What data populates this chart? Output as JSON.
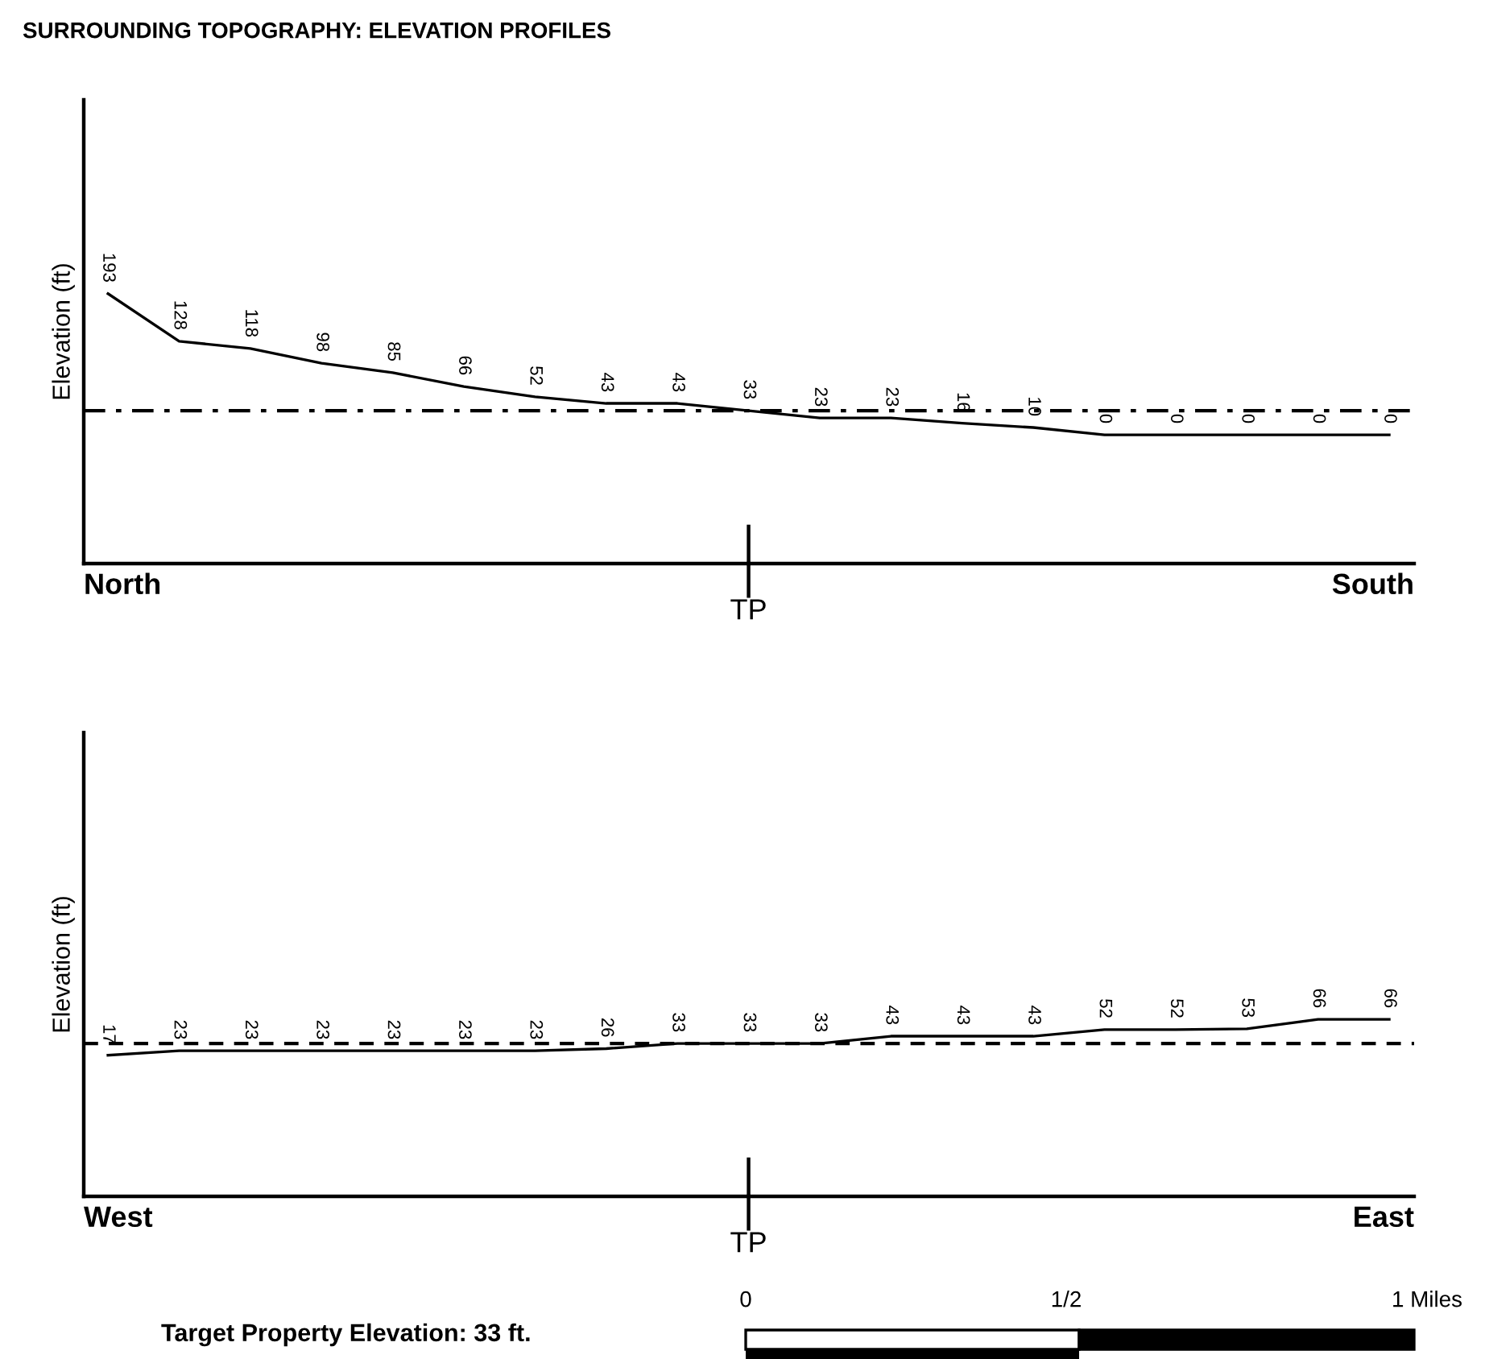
{
  "chart_data": [
    {
      "type": "line",
      "title": "SURROUNDING TOPOGRAPHY: ELEVATION PROFILES",
      "ylabel": "Elevation (ft)",
      "categories": [
        null,
        null,
        null,
        null,
        null,
        null,
        null,
        null,
        null,
        null,
        null,
        null,
        null,
        null,
        null,
        null,
        null,
        null,
        null
      ],
      "series": [
        {
          "color": "#000000",
          "values": [
            193,
            128,
            118,
            98,
            85,
            66,
            52,
            43,
            43,
            33,
            23,
            23,
            16,
            10,
            0,
            0,
            0,
            0,
            0
          ]
        }
      ],
      "ylim": [
        -176,
        458
      ],
      "data_labels": true,
      "grid": false,
      "legend": false,
      "marker": "none",
      "line_style": "solid",
      "ref_lines": [
        {
          "axis": "y",
          "value": 33,
          "line_style": "dashdot",
          "color": "#000000"
        }
      ],
      "annotations": [
        "North",
        "South",
        "TP"
      ]
    },
    {
      "type": "line",
      "ylabel": "Elevation (ft)",
      "categories": [
        null,
        null,
        null,
        null,
        null,
        null,
        null,
        null,
        null,
        null,
        null,
        null,
        null,
        null,
        null,
        null,
        null,
        null,
        null
      ],
      "series": [
        {
          "color": "#000000",
          "values": [
            17,
            23,
            23,
            23,
            23,
            23,
            23,
            26,
            33,
            33,
            33,
            43,
            43,
            43,
            52,
            52,
            53,
            66,
            66
          ]
        }
      ],
      "ylim": [
        -176,
        458
      ],
      "data_labels": true,
      "grid": false,
      "legend": false,
      "marker": "none",
      "line_style": "solid",
      "ref_lines": [
        {
          "axis": "y",
          "value": 33,
          "line_style": "dashed",
          "color": "#000000"
        }
      ],
      "annotations": [
        "West",
        "East",
        "TP",
        "Target Property Elevation: 33 ft.",
        "0",
        "1/2",
        "1 Miles"
      ]
    }
  ]
}
